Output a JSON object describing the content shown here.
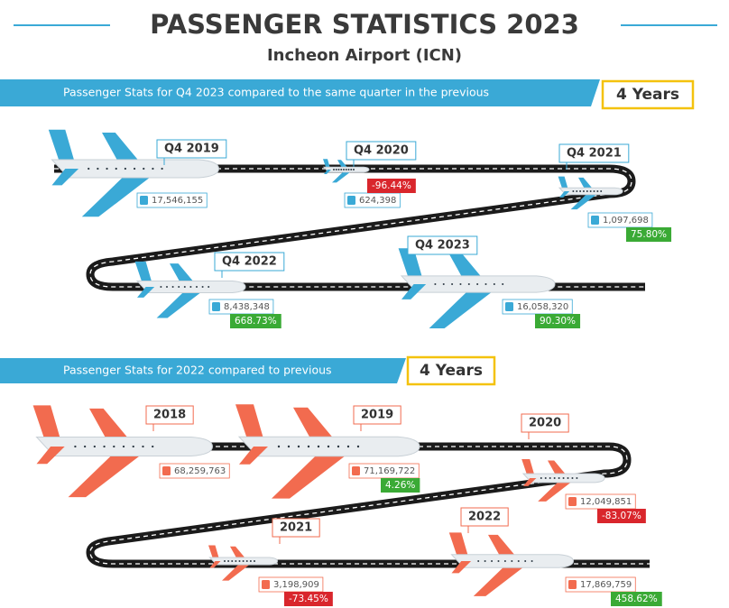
{
  "header": {
    "title": "PASSENGER STATISTICS 2023",
    "subtitle": "Incheon Airport (ICN)"
  },
  "sections": [
    {
      "banner": "Passenger Stats for Q4 2023 compared to the same quarter in the previous",
      "badge": "4 Years",
      "color": "#3aa9d6",
      "items": [
        {
          "label": "Q4 2019",
          "passengers": "17,546,155"
        },
        {
          "label": "Q4 2020",
          "passengers": "624,398",
          "change": "-96.44%"
        },
        {
          "label": "Q4 2021",
          "passengers": "1,097,698",
          "change": "75.80%"
        },
        {
          "label": "Q4 2022",
          "passengers": "8,438,348",
          "change": "668.73%"
        },
        {
          "label": "Q4 2023",
          "passengers": "16,058,320",
          "change": "90.30%"
        }
      ]
    },
    {
      "banner": "Passenger Stats for 2022 compared to previous",
      "badge": "4 Years",
      "color": "#f26b4f",
      "items": [
        {
          "label": "2018",
          "passengers": "68,259,763"
        },
        {
          "label": "2019",
          "passengers": "71,169,722",
          "change": "4.26%"
        },
        {
          "label": "2020",
          "passengers": "12,049,851",
          "change": "-83.07%"
        },
        {
          "label": "2021",
          "passengers": "3,198,909",
          "change": "-73.45%"
        },
        {
          "label": "2022",
          "passengers": "17,869,759",
          "change": "458.62%"
        }
      ]
    }
  ]
}
